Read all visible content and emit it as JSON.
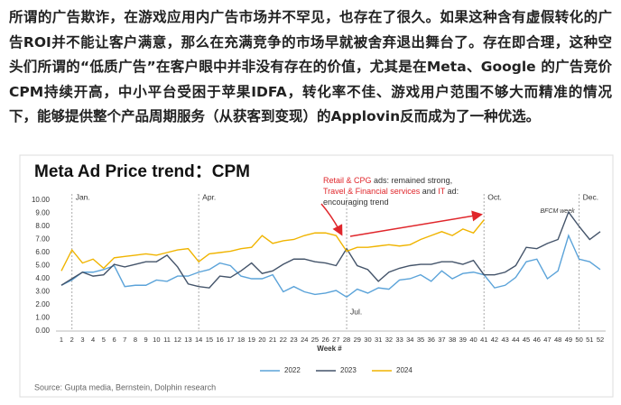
{
  "article": {
    "lines": [
      "所谓的广告欺诈，在游戏应用内广告市场并不罕见，也存在了很久。如果这种含有虚假转化的广",
      "告ROI并不能让客户满意，那么在充满竞争的市场早就被舍弃退出舞台了。存在即合理，这种空",
      "头们所谓的“低质广告”在客户眼中并非没有存在的价值，尤其是在Meta、Google 的广告竞价",
      "CPM持续开高，中小平台受困于苹果IDFA，转化率不佳、游戏用户范围不够大而精准的情况",
      "下，能够提供整个产品周期服务（从获客到变现）的Applovin反而成为了一种优选。"
    ]
  },
  "chart_data": {
    "type": "line",
    "title": "Meta Ad Price trend：CPM",
    "x_label": "Week #",
    "x": [
      1,
      2,
      3,
      4,
      5,
      6,
      7,
      8,
      9,
      10,
      11,
      12,
      13,
      14,
      15,
      16,
      17,
      18,
      19,
      20,
      21,
      22,
      23,
      24,
      25,
      26,
      27,
      28,
      29,
      30,
      31,
      32,
      33,
      34,
      35,
      36,
      37,
      38,
      39,
      40,
      41,
      42,
      43,
      44,
      45,
      46,
      47,
      48,
      49,
      50,
      51,
      52
    ],
    "xlim": [
      1,
      52
    ],
    "ylim": [
      0,
      10
    ],
    "yticks": [
      {
        "value": 0,
        "label": "0.00"
      },
      {
        "value": 1,
        "label": "1.00"
      },
      {
        "value": 2,
        "label": "2.00"
      },
      {
        "value": 3,
        "label": "3.00"
      },
      {
        "value": 4,
        "label": "4.00"
      },
      {
        "value": 5,
        "label": "5.00"
      },
      {
        "value": 6,
        "label": "6.00"
      },
      {
        "value": 7,
        "label": "7.00"
      },
      {
        "value": 8,
        "label": "8.00"
      },
      {
        "value": 9,
        "label": "9.00"
      },
      {
        "value": 10,
        "label": "10.00"
      }
    ],
    "series": [
      {
        "name": "2022",
        "color": "#5ba3d9",
        "values": [
          3.5,
          3.9,
          4.5,
          4.5,
          4.7,
          5.0,
          3.4,
          3.5,
          3.5,
          3.9,
          3.8,
          4.2,
          4.2,
          4.5,
          4.7,
          5.2,
          5.0,
          4.2,
          4.0,
          4.0,
          4.3,
          3.0,
          3.4,
          3.0,
          2.8,
          2.9,
          3.1,
          2.6,
          3.2,
          2.9,
          3.3,
          3.2,
          3.9,
          4.0,
          4.3,
          3.8,
          4.6,
          4.0,
          4.4,
          4.5,
          4.3,
          3.3,
          3.5,
          4.1,
          5.3,
          5.5,
          4.0,
          4.6,
          7.3,
          5.5,
          5.3,
          4.7
        ]
      },
      {
        "name": "2023",
        "color": "#44546a",
        "values": [
          3.5,
          4.0,
          4.5,
          4.2,
          4.3,
          5.1,
          4.9,
          5.1,
          5.3,
          5.3,
          5.8,
          4.9,
          3.6,
          3.4,
          3.3,
          4.2,
          4.1,
          4.6,
          5.2,
          4.4,
          4.6,
          5.1,
          5.5,
          5.5,
          5.3,
          5.2,
          5.0,
          6.3,
          5.0,
          4.7,
          3.8,
          4.5,
          4.8,
          5.0,
          5.1,
          5.1,
          5.3,
          5.3,
          5.1,
          5.4,
          4.3,
          4.3,
          4.5,
          5.0,
          6.4,
          6.3,
          6.7,
          7.0,
          9.1,
          8.0,
          7.0,
          7.6
        ]
      },
      {
        "name": "2024",
        "color": "#f0b400",
        "values": [
          4.6,
          6.2,
          5.2,
          5.5,
          4.8,
          5.6,
          5.7,
          5.8,
          5.9,
          5.8,
          6.0,
          6.2,
          6.3,
          5.3,
          5.9,
          6.0,
          6.1,
          6.3,
          6.4,
          7.3,
          6.7,
          6.9,
          7.0,
          7.3,
          7.5,
          7.5,
          7.3,
          6.1,
          6.4,
          6.4,
          6.5,
          6.6,
          6.5,
          6.6,
          7.0,
          7.3,
          7.6,
          7.3,
          7.8,
          7.5,
          8.5,
          null,
          null,
          null,
          null,
          null,
          null,
          null,
          null,
          null,
          null,
          null
        ]
      }
    ],
    "month_markers": [
      {
        "label": "Jan.",
        "week": 2
      },
      {
        "label": "Apr.",
        "week": 14
      },
      {
        "label": "Jul.",
        "week": 28
      },
      {
        "label": "Oct.",
        "week": 41
      },
      {
        "label": "Dec.",
        "week": 50
      }
    ],
    "bfcm_label": "BFCM week",
    "annotation": [
      [
        {
          "text": "Retail & CPG",
          "color": "#e0262b"
        },
        {
          "text": " ads: remained strong,",
          "color": "#333333"
        }
      ],
      [
        {
          "text": "Travel & Financial services",
          "color": "#e0262b"
        },
        {
          "text": " and ",
          "color": "#333333"
        },
        {
          "text": "IT",
          "color": "#e0262b"
        },
        {
          "text": " ad:",
          "color": "#333333"
        }
      ],
      [
        {
          "text": "encouraging trend",
          "color": "#333333"
        }
      ]
    ],
    "source": "Source: Gupta media, Bernstein, Dolphin research",
    "legend": "bottom"
  }
}
